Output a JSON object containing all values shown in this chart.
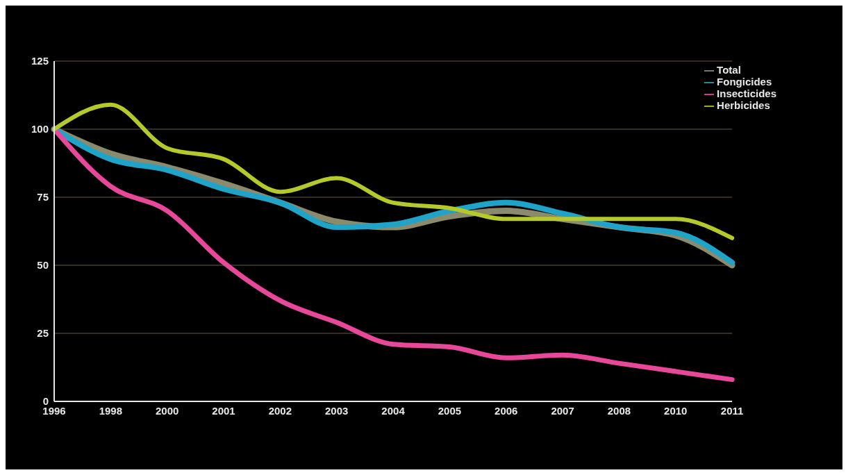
{
  "chart_data": {
    "type": "line",
    "categories": [
      "1996",
      "1998",
      "2000",
      "2001",
      "2002",
      "2003",
      "2004",
      "2005",
      "2006",
      "2007",
      "2008",
      "2010",
      "2011"
    ],
    "series": [
      {
        "name": "Total",
        "color": "#8c8a6c",
        "values": [
          100,
          91,
          86,
          80,
          73,
          66,
          64,
          68,
          70,
          67,
          64,
          61,
          50
        ]
      },
      {
        "name": "Fongicides",
        "color": "#1fa3c8",
        "values": [
          100,
          89,
          85,
          78,
          73,
          64,
          65,
          70,
          73,
          69,
          64,
          62,
          51
        ]
      },
      {
        "name": "Insecticides",
        "color": "#e8489a",
        "values": [
          100,
          79,
          70,
          51,
          37,
          29,
          21,
          20,
          16,
          17,
          14,
          11,
          8
        ]
      },
      {
        "name": "Herbicides",
        "color": "#b5c92a",
        "values": [
          100,
          109,
          93,
          89,
          77,
          82,
          73,
          71,
          67,
          67,
          67,
          67,
          60
        ]
      }
    ],
    "ylim": [
      0,
      125
    ],
    "yticks": [
      0,
      25,
      50,
      75,
      100,
      125
    ],
    "grid": "y",
    "legend": "top right",
    "marker": "none",
    "line_style": "solid"
  }
}
